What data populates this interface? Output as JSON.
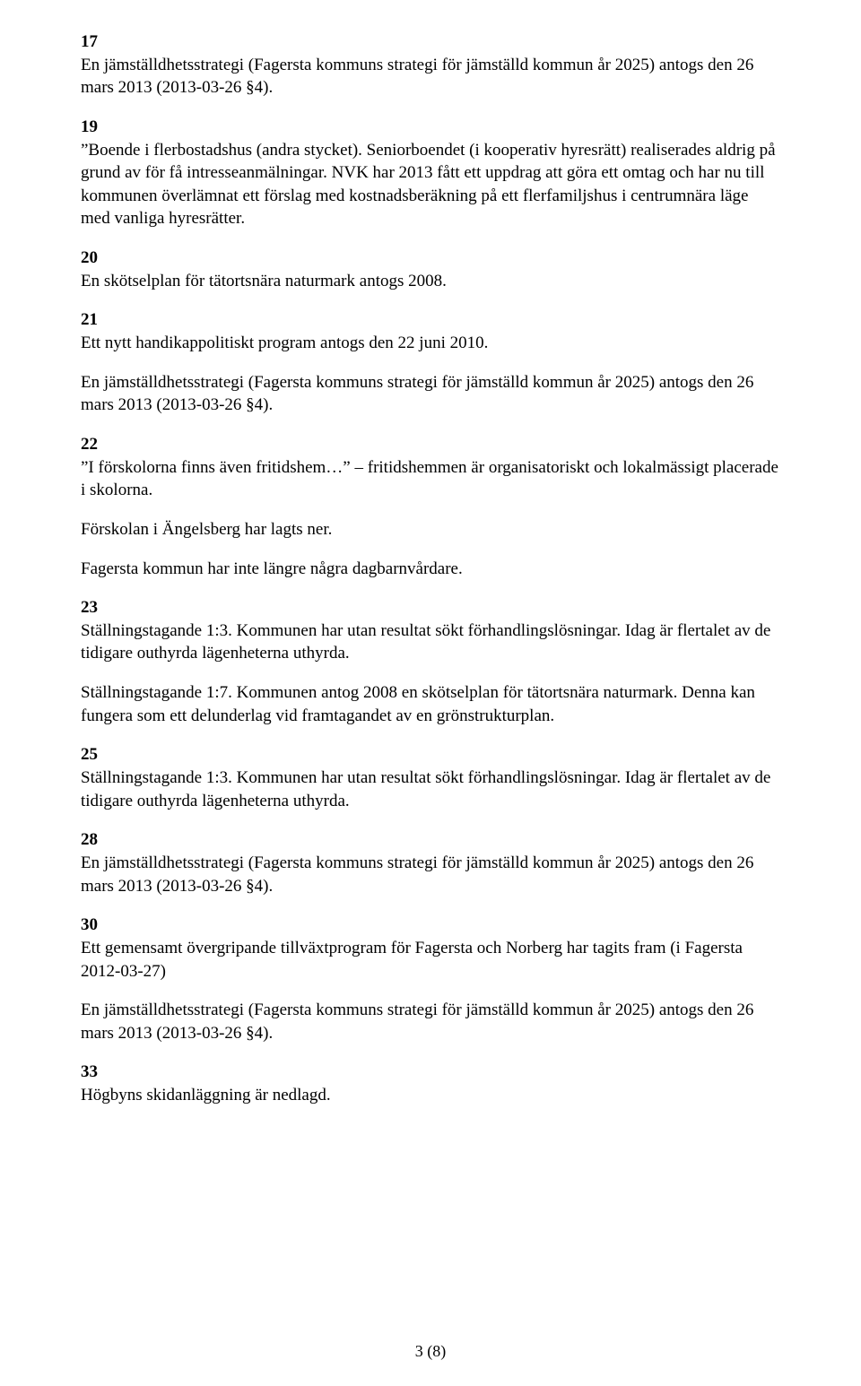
{
  "sections": {
    "s17": {
      "num": "17",
      "p1": "En jämställdhetsstrategi (Fagersta kommuns strategi för jämställd kommun år 2025) antogs den 26 mars 2013 (2013-03-26 §4)."
    },
    "s19": {
      "num": "19",
      "p1": "”Boende i flerbostadshus (andra stycket). Seniorboendet (i kooperativ hyresrätt) realiserades aldrig på grund av för få intresseanmälningar. NVK har 2013 fått ett uppdrag att göra ett omtag och har nu till kommunen överlämnat ett förslag med kostnadsberäkning på ett flerfamiljshus i centrumnära läge med vanliga hyresrätter."
    },
    "s20": {
      "num": "20",
      "p1": "En skötselplan för tätortsnära naturmark antogs 2008."
    },
    "s21": {
      "num": "21",
      "p1": "Ett nytt handikappolitiskt program antogs den 22 juni 2010.",
      "p2": "En jämställdhetsstrategi (Fagersta kommuns strategi för jämställd kommun år 2025) antogs den 26 mars 2013 (2013-03-26 §4)."
    },
    "s22": {
      "num": "22",
      "p1": "”I förskolorna finns även fritidshem…” – fritidshemmen är organisatoriskt och lokalmässigt placerade i skolorna.",
      "p2": "Förskolan i Ängelsberg har lagts ner.",
      "p3": "Fagersta kommun har inte längre några dagbarnvårdare."
    },
    "s23": {
      "num": "23",
      "p1": "Ställningstagande 1:3. Kommunen har utan resultat sökt förhandlingslösningar. Idag är flertalet av de tidigare outhyrda lägenheterna uthyrda.",
      "p2": "Ställningstagande 1:7. Kommunen antog 2008 en skötselplan för tätortsnära naturmark. Denna kan fungera som ett delunderlag vid framtagandet av en grönstrukturplan."
    },
    "s25": {
      "num": "25",
      "p1": "Ställningstagande 1:3. Kommunen har utan resultat sökt förhandlingslösningar. Idag är flertalet av de tidigare outhyrda lägenheterna uthyrda."
    },
    "s28": {
      "num": "28",
      "p1": "En jämställdhetsstrategi (Fagersta kommuns strategi för jämställd kommun år 2025) antogs den 26 mars 2013 (2013-03-26 §4)."
    },
    "s30": {
      "num": "30",
      "p1": "Ett gemensamt övergripande tillväxtprogram för Fagersta och Norberg har tagits fram (i Fagersta 2012-03-27)",
      "p2": "En jämställdhetsstrategi (Fagersta kommuns strategi för jämställd kommun år 2025) antogs den 26 mars 2013 (2013-03-26 §4)."
    },
    "s33": {
      "num": "33",
      "p1": "Högbyns skidanläggning är nedlagd."
    }
  },
  "page_number": "3 (8)"
}
